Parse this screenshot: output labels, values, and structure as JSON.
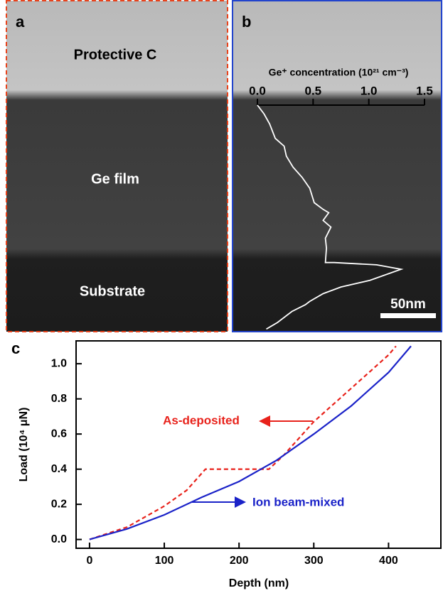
{
  "panels": {
    "a": {
      "label": "a",
      "layers": [
        "Protective C",
        "Ge film",
        "Substrate"
      ]
    },
    "b": {
      "label": "b",
      "scale_bar": "50nm"
    },
    "c": {
      "label": "c"
    }
  },
  "chart_data": [
    {
      "type": "line",
      "x_label": "Ge⁺ concentration (10²¹ cm⁻³)",
      "xlim": [
        0,
        1.5
      ],
      "xticks": [
        {
          "value": 0,
          "label": "0.0"
        },
        0.5,
        {
          "value": 1,
          "label": "1.0"
        },
        1.5
      ],
      "ylim": [
        0,
        203
      ],
      "x": [
        0,
        0.06,
        0.11,
        0.16,
        0.24,
        0.26,
        0.32,
        0.4,
        0.47,
        0.51,
        0.59,
        0.64,
        0.59,
        0.66,
        0.61,
        0.62,
        0.61,
        0.69,
        1.07,
        1.29,
        1.01,
        0.75,
        0.59,
        0.47,
        0.43,
        0.31,
        0.18,
        0.08
      ],
      "series": [
        {
          "color": "#ffffff",
          "values": [
            0,
            8,
            17,
            30,
            37,
            46,
            56,
            65,
            75,
            88,
            94,
            97,
            104,
            110,
            120,
            129,
            142,
            142,
            144,
            148,
            158,
            164,
            170,
            177,
            180,
            186,
            196,
            202
          ]
        }
      ]
    },
    {
      "type": "line",
      "x_label": "Depth (nm)",
      "y_label": "Load (10⁴ μN)",
      "xlim": [
        -18,
        470
      ],
      "xticks": [
        0,
        100,
        200,
        300,
        400
      ],
      "ylim": [
        -0.05,
        1.13
      ],
      "yticks": [
        {
          "value": 0,
          "label": "0.0"
        },
        0.2,
        0.4,
        0.6,
        0.8,
        {
          "value": 1,
          "label": "1.0"
        }
      ],
      "series": [
        {
          "name": "As-deposited",
          "color": "#e8221b",
          "line_style": "dashed",
          "x": [
            0,
            50,
            100,
            130,
            155,
            200,
            240,
            260,
            300,
            350,
            400,
            410
          ],
          "values": [
            0,
            0.07,
            0.19,
            0.28,
            0.4,
            0.4,
            0.4,
            0.48,
            0.67,
            0.86,
            1.05,
            1.1
          ]
        },
        {
          "name": "Ion beam-mixed",
          "color": "#1a22c8",
          "line_style": "solid",
          "x": [
            0,
            50,
            100,
            150,
            200,
            250,
            300,
            350,
            400,
            430
          ],
          "values": [
            0,
            0.06,
            0.14,
            0.24,
            0.33,
            0.45,
            0.6,
            0.76,
            0.95,
            1.1
          ]
        }
      ]
    }
  ]
}
